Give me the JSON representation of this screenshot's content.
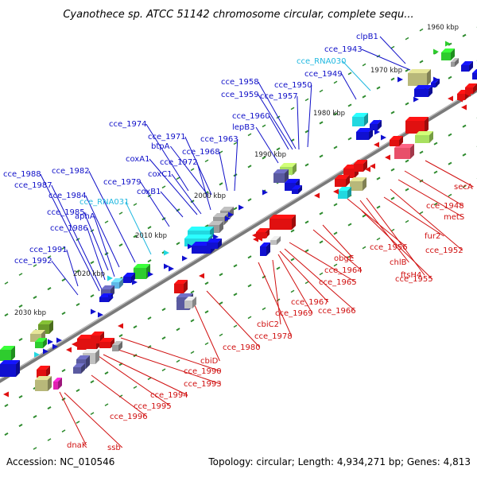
{
  "title": "Cyanothece sp. ATCC 51142 chromosome circular, complete sequ...",
  "footer": {
    "accession": "Accession: NC_010546",
    "summary": "Topology: circular; Length: 4,934,271 bp; Genes: 4,813"
  },
  "colors": {
    "forward_label": "#1010c8",
    "reverse_label": "#d01010",
    "rna_label": "#20b8e0",
    "backbone": "#7a7a7a",
    "tick": "#2e8b2e"
  },
  "kbp_marks": [
    "1960 kbp",
    "1970 kbp",
    "1980 kbp",
    "1990 kbp",
    "2000 kbp",
    "2010 kbp",
    "2020 kbp",
    "2030 kbp"
  ],
  "forward_genes": [
    "clpB1",
    "cce_1943",
    "cce_RNA030",
    "cce_1949",
    "cce_1950",
    "cce_1957",
    "cce_1958",
    "cce_1959",
    "cce_1960",
    "lepB3",
    "cce_1963",
    "cce_1968",
    "cce_1974",
    "cce_1971",
    "btpA",
    "coxA1",
    "cce_1972",
    "coxC1",
    "coxB1",
    "cce_1979",
    "cce_RNA031",
    "cce_1982",
    "cce_1984",
    "aphA",
    "cce_1985",
    "cce_1986",
    "cce_1987",
    "cce_1988",
    "cce_1991",
    "cce_1992"
  ],
  "reverse_genes": [
    "secA",
    "cce_1948",
    "metS",
    "fur2",
    "cce_1952",
    "cce_1956",
    "chlB",
    "ftsH4",
    "cce_1955",
    "obgE",
    "cce_1964",
    "cce_1965",
    "cce_1966",
    "cce_1967",
    "cce_1969",
    "cbiC2",
    "cce_1978",
    "cce_1980",
    "cbiD",
    "cce_1990",
    "cce_1993",
    "cce_1994",
    "cce_1995",
    "cce_1996",
    "dnaK",
    "ssb"
  ]
}
